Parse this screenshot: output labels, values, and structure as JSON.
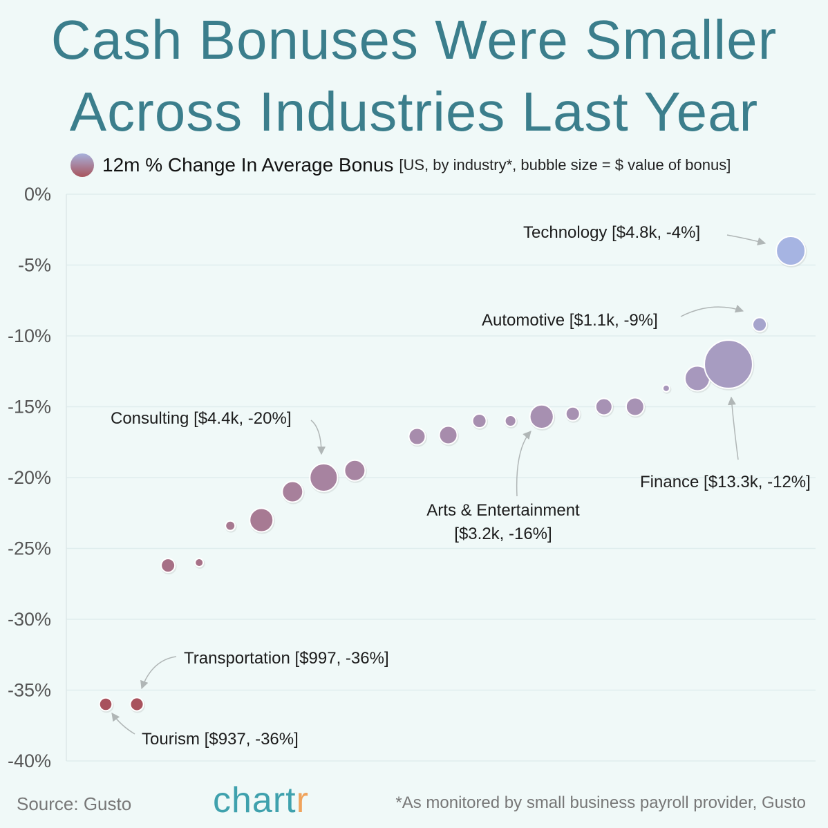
{
  "title": {
    "line1": "Cash Bonuses Were Smaller",
    "line2": "Across Industries Last Year"
  },
  "legend": {
    "label": "12m % Change In Average Bonus",
    "subtitle": "[US, by industry*, bubble size = $ value of bonus]"
  },
  "footer": {
    "source": "Source: Gusto",
    "logo_main": "chart",
    "logo_r": "r",
    "note": "*As monitored by small business payroll provider, Gusto"
  },
  "colors": {
    "low": "#a8525d",
    "high": "#a6b4e2",
    "background": "#f0f9f8",
    "title": "#3b7e8c"
  },
  "chart_data": {
    "type": "scatter",
    "bubble": true,
    "ylabel": "",
    "ylim": [
      -40,
      0
    ],
    "yticks": [
      "0%",
      "-5%",
      "-10%",
      "-15%",
      "-20%",
      "-25%",
      "-30%",
      "-35%",
      "-40%"
    ],
    "ytick_values": [
      0,
      -5,
      -10,
      -15,
      -20,
      -25,
      -30,
      -35,
      -40
    ],
    "grid": true,
    "legend_position": "top-left",
    "points": [
      {
        "x": 1,
        "y": -36,
        "bonus": 937,
        "label": "Tourism [$937, -36%]"
      },
      {
        "x": 2,
        "y": -36,
        "bonus": 997,
        "label": "Transportation [$997, -36%]"
      },
      {
        "x": 3,
        "y": -26.2,
        "bonus": 1090
      },
      {
        "x": 4,
        "y": -26,
        "bonus": 390
      },
      {
        "x": 5,
        "y": -23.4,
        "bonus": 530
      },
      {
        "x": 6,
        "y": -23,
        "bonus": 3150
      },
      {
        "x": 7,
        "y": -21,
        "bonus": 2450
      },
      {
        "x": 8,
        "y": -20,
        "bonus": 4400,
        "label": "Consulting [$4.4k, -20%]"
      },
      {
        "x": 9,
        "y": -19.5,
        "bonus": 2450
      },
      {
        "x": 11,
        "y": -17.1,
        "bonus": 1570
      },
      {
        "x": 12,
        "y": -17,
        "bonus": 1840
      },
      {
        "x": 13,
        "y": -16,
        "bonus": 1090
      },
      {
        "x": 14,
        "y": -16,
        "bonus": 700
      },
      {
        "x": 15,
        "y": -15.7,
        "bonus": 3200,
        "label": "Arts & Entertainment [$3.2k, -16%]"
      },
      {
        "x": 16,
        "y": -15.5,
        "bonus": 1090
      },
      {
        "x": 17,
        "y": -15,
        "bonus": 1570
      },
      {
        "x": 18,
        "y": -15,
        "bonus": 1840
      },
      {
        "x": 19,
        "y": -13.7,
        "bonus": 270
      },
      {
        "x": 20,
        "y": -13,
        "bonus": 3530
      },
      {
        "x": 21,
        "y": -12,
        "bonus": 13300,
        "label": "Finance [$13.3k, -12%]"
      },
      {
        "x": 22,
        "y": -9.2,
        "bonus": 1100,
        "label": "Automotive [$1.1k, -9%]"
      },
      {
        "x": 23,
        "y": -4,
        "bonus": 4800,
        "label": "Technology [$4.8k, -4%]"
      }
    ],
    "annotations": {
      "technology": "Technology [$4.8k, -4%]",
      "automotive": "Automotive [$1.1k, -9%]",
      "finance": "Finance [$13.3k, -12%]",
      "consulting": "Consulting [$4.4k, -20%]",
      "arts_line1": "Arts & Entertainment",
      "arts_line2": "[$3.2k, -16%]",
      "transportation": "Transportation [$997, -36%]",
      "tourism": "Tourism [$937, -36%]"
    }
  }
}
